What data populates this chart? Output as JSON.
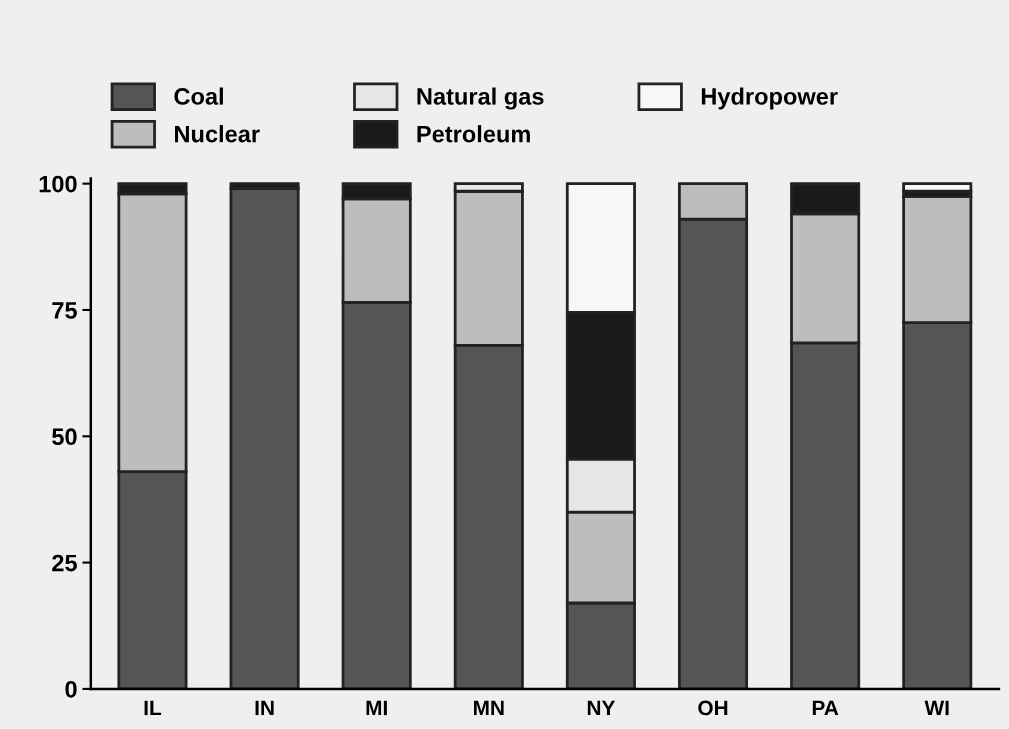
{
  "chart_data": {
    "type": "bar",
    "stacked": true,
    "categories": [
      "IL",
      "IN",
      "MI",
      "MN",
      "NY",
      "OH",
      "PA",
      "WI"
    ],
    "series": [
      {
        "name": "Coal",
        "color": "#555555",
        "values": [
          43,
          99,
          76.5,
          68,
          17,
          93,
          68.5,
          72.5
        ]
      },
      {
        "name": "Nuclear",
        "color": "#bdbdbd",
        "values": [
          55,
          null,
          20.5,
          30.5,
          18,
          7,
          25.5,
          25
        ]
      },
      {
        "name": "Natural gas",
        "color": "#e6e6e6",
        "values": [
          null,
          null,
          null,
          1.5,
          10.5,
          null,
          null,
          null
        ]
      },
      {
        "name": "Petroleum",
        "color": "#1a1a1a",
        "values": [
          2,
          1,
          3,
          null,
          29,
          null,
          6,
          1
        ]
      },
      {
        "name": "Hydropower",
        "color": "#f7f7f7",
        "values": [
          null,
          null,
          null,
          null,
          25.5,
          null,
          null,
          1.5
        ]
      }
    ],
    "ylim": [
      0,
      101
    ],
    "yticks": [
      0,
      25,
      50,
      75,
      100
    ],
    "grid": false,
    "legend": "top"
  }
}
